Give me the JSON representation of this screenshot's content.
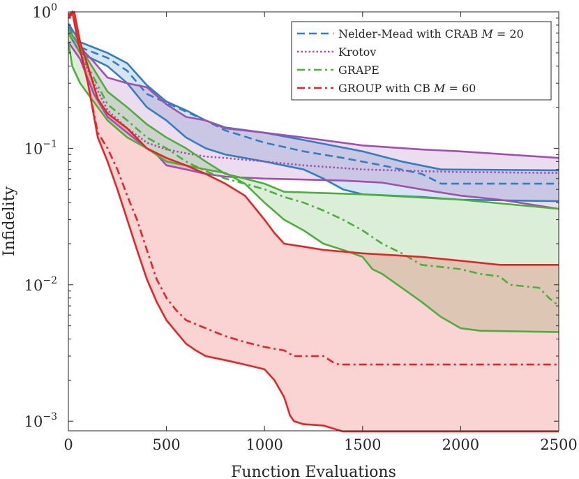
{
  "chart_data": {
    "type": "line",
    "title": "",
    "xlabel": "Function Evaluations",
    "ylabel": "Infidelity",
    "xlim": [
      0,
      2500
    ],
    "ylim": [
      0.00085,
      1.0
    ],
    "yscale": "log",
    "xticks": [
      0,
      500,
      1000,
      1500,
      2000,
      2500
    ],
    "xtick_labels": [
      "0",
      "500",
      "1000",
      "1500",
      "2000",
      "2500"
    ],
    "yticks": [
      1,
      0.1,
      0.01,
      0.001
    ],
    "ytick_labels": [
      {
        "base": "10",
        "exp": "0"
      },
      {
        "base": "10",
        "exp": "−1"
      },
      {
        "base": "10",
        "exp": "−2"
      },
      {
        "base": "10",
        "exp": "−3"
      }
    ],
    "legend": {
      "position": "top-right",
      "entries": [
        {
          "series": "nm",
          "pre": "Nelder-Mead with CRAB ",
          "math": "M",
          "post": " = 20"
        },
        {
          "series": "krotov",
          "pre": "Krotov",
          "math": "",
          "post": ""
        },
        {
          "series": "grape",
          "pre": "GRAPE",
          "math": "",
          "post": ""
        },
        {
          "series": "group",
          "pre": "GROUP with CB ",
          "math": "M",
          "post": " = 60"
        }
      ]
    },
    "series": [
      {
        "id": "nm",
        "name": "Nelder-Mead with CRAB M = 20",
        "color": "#2f7fc1",
        "dash": "dashed",
        "median": [
          [
            0,
            0.78
          ],
          [
            60,
            0.55
          ],
          [
            200,
            0.46
          ],
          [
            300,
            0.37
          ],
          [
            400,
            0.25
          ],
          [
            550,
            0.2
          ],
          [
            700,
            0.16
          ],
          [
            800,
            0.135
          ],
          [
            1000,
            0.11
          ],
          [
            1200,
            0.095
          ],
          [
            1400,
            0.085
          ],
          [
            1600,
            0.075
          ],
          [
            1800,
            0.065
          ],
          [
            1850,
            0.06
          ],
          [
            1900,
            0.055
          ],
          [
            2500,
            0.055
          ]
        ],
        "upper": [
          [
            0,
            0.82
          ],
          [
            60,
            0.6
          ],
          [
            200,
            0.5
          ],
          [
            300,
            0.42
          ],
          [
            400,
            0.29
          ],
          [
            500,
            0.22
          ],
          [
            600,
            0.19
          ],
          [
            700,
            0.16
          ],
          [
            800,
            0.142
          ],
          [
            1000,
            0.13
          ],
          [
            1200,
            0.115
          ],
          [
            1500,
            0.095
          ],
          [
            1700,
            0.08
          ],
          [
            1900,
            0.07
          ],
          [
            2500,
            0.069
          ]
        ],
        "lower": [
          [
            0,
            0.7
          ],
          [
            60,
            0.5
          ],
          [
            200,
            0.4
          ],
          [
            300,
            0.3
          ],
          [
            400,
            0.2
          ],
          [
            500,
            0.16
          ],
          [
            600,
            0.12
          ],
          [
            700,
            0.1
          ],
          [
            800,
            0.09
          ],
          [
            1000,
            0.08
          ],
          [
            1200,
            0.07
          ],
          [
            1300,
            0.06
          ],
          [
            1400,
            0.05
          ],
          [
            1500,
            0.046
          ],
          [
            1800,
            0.044
          ],
          [
            2000,
            0.042
          ],
          [
            2500,
            0.041
          ]
        ]
      },
      {
        "id": "krotov",
        "name": "Krotov",
        "color": "#a050b0",
        "dash": "dotted",
        "median": [
          [
            0,
            0.7
          ],
          [
            60,
            0.5
          ],
          [
            130,
            0.3
          ],
          [
            200,
            0.19
          ],
          [
            300,
            0.14
          ],
          [
            400,
            0.11
          ],
          [
            500,
            0.098
          ],
          [
            600,
            0.092
          ],
          [
            700,
            0.087
          ],
          [
            800,
            0.085
          ],
          [
            1000,
            0.08
          ],
          [
            1200,
            0.075
          ],
          [
            1500,
            0.07
          ],
          [
            1800,
            0.068
          ],
          [
            2000,
            0.067
          ],
          [
            2500,
            0.066
          ]
        ],
        "upper": [
          [
            0,
            0.75
          ],
          [
            60,
            0.55
          ],
          [
            130,
            0.43
          ],
          [
            200,
            0.33
          ],
          [
            300,
            0.3
          ],
          [
            400,
            0.28
          ],
          [
            500,
            0.21
          ],
          [
            600,
            0.17
          ],
          [
            700,
            0.16
          ],
          [
            800,
            0.14
          ],
          [
            1000,
            0.13
          ],
          [
            1200,
            0.12
          ],
          [
            1500,
            0.105
          ],
          [
            1800,
            0.098
          ],
          [
            2000,
            0.095
          ],
          [
            2500,
            0.085
          ]
        ],
        "lower": [
          [
            0,
            0.6
          ],
          [
            60,
            0.45
          ],
          [
            130,
            0.25
          ],
          [
            200,
            0.17
          ],
          [
            300,
            0.13
          ],
          [
            400,
            0.1
          ],
          [
            450,
            0.09
          ],
          [
            500,
            0.075
          ],
          [
            600,
            0.07
          ],
          [
            700,
            0.065
          ],
          [
            800,
            0.062
          ],
          [
            1000,
            0.06
          ],
          [
            1400,
            0.058
          ],
          [
            1600,
            0.056
          ],
          [
            1800,
            0.05
          ],
          [
            2000,
            0.045
          ],
          [
            2200,
            0.042
          ],
          [
            2500,
            0.036
          ]
        ]
      },
      {
        "id": "grape",
        "name": "GRAPE",
        "color": "#4caf3c",
        "dash": "dashdot",
        "median": [
          [
            0,
            0.7
          ],
          [
            60,
            0.5
          ],
          [
            120,
            0.35
          ],
          [
            200,
            0.21
          ],
          [
            300,
            0.16
          ],
          [
            400,
            0.12
          ],
          [
            500,
            0.1
          ],
          [
            600,
            0.08
          ],
          [
            700,
            0.068
          ],
          [
            800,
            0.06
          ],
          [
            900,
            0.055
          ],
          [
            1000,
            0.05
          ],
          [
            1100,
            0.044
          ],
          [
            1200,
            0.04
          ],
          [
            1300,
            0.035
          ],
          [
            1400,
            0.03
          ],
          [
            1500,
            0.025
          ],
          [
            1600,
            0.02
          ],
          [
            1700,
            0.017
          ],
          [
            1800,
            0.014
          ],
          [
            1900,
            0.0135
          ],
          [
            2000,
            0.013
          ],
          [
            2100,
            0.012
          ],
          [
            2200,
            0.0115
          ],
          [
            2250,
            0.01
          ],
          [
            2400,
            0.0095
          ],
          [
            2450,
            0.008
          ],
          [
            2500,
            0.007
          ]
        ],
        "upper": [
          [
            0,
            0.75
          ],
          [
            60,
            0.55
          ],
          [
            120,
            0.4
          ],
          [
            200,
            0.26
          ],
          [
            300,
            0.2
          ],
          [
            400,
            0.15
          ],
          [
            500,
            0.12
          ],
          [
            600,
            0.1
          ],
          [
            700,
            0.08
          ],
          [
            800,
            0.065
          ],
          [
            900,
            0.06
          ],
          [
            1000,
            0.055
          ],
          [
            1100,
            0.048
          ],
          [
            1500,
            0.046
          ],
          [
            2000,
            0.042
          ],
          [
            2500,
            0.036
          ]
        ],
        "lower": [
          [
            0,
            0.6
          ],
          [
            20,
            0.4
          ],
          [
            60,
            0.3
          ],
          [
            100,
            0.25
          ],
          [
            150,
            0.2
          ],
          [
            200,
            0.16
          ],
          [
            300,
            0.12
          ],
          [
            400,
            0.1
          ],
          [
            500,
            0.08
          ],
          [
            700,
            0.07
          ],
          [
            800,
            0.066
          ],
          [
            900,
            0.055
          ],
          [
            1000,
            0.04
          ],
          [
            1100,
            0.03
          ],
          [
            1200,
            0.025
          ],
          [
            1300,
            0.02
          ],
          [
            1400,
            0.018
          ],
          [
            1500,
            0.016
          ],
          [
            1550,
            0.013
          ],
          [
            1600,
            0.012
          ],
          [
            1700,
            0.0095
          ],
          [
            1800,
            0.0075
          ],
          [
            1900,
            0.0058
          ],
          [
            2000,
            0.0048
          ],
          [
            2100,
            0.0046
          ],
          [
            2500,
            0.0045
          ]
        ]
      },
      {
        "id": "group",
        "name": "GROUP with CB M = 60",
        "color": "#e42525",
        "dash": "dashdot",
        "median": [
          [
            0,
            0.95
          ],
          [
            20,
            1.0
          ],
          [
            50,
            0.6
          ],
          [
            100,
            0.3
          ],
          [
            150,
            0.13
          ],
          [
            200,
            0.1
          ],
          [
            250,
            0.07
          ],
          [
            300,
            0.045
          ],
          [
            350,
            0.03
          ],
          [
            400,
            0.018
          ],
          [
            450,
            0.011
          ],
          [
            500,
            0.008
          ],
          [
            550,
            0.0065
          ],
          [
            600,
            0.0055
          ],
          [
            700,
            0.0048
          ],
          [
            800,
            0.0042
          ],
          [
            900,
            0.0038
          ],
          [
            1000,
            0.0035
          ],
          [
            1100,
            0.0033
          ],
          [
            1150,
            0.003
          ],
          [
            1300,
            0.003
          ],
          [
            1350,
            0.0027
          ],
          [
            1380,
            0.0026
          ],
          [
            2500,
            0.0026
          ]
        ],
        "upper": [
          [
            0,
            0.9
          ],
          [
            30,
            1.0
          ],
          [
            60,
            0.6
          ],
          [
            100,
            0.4
          ],
          [
            150,
            0.23
          ],
          [
            200,
            0.18
          ],
          [
            300,
            0.14
          ],
          [
            400,
            0.1
          ],
          [
            500,
            0.085
          ],
          [
            600,
            0.075
          ],
          [
            700,
            0.065
          ],
          [
            800,
            0.055
          ],
          [
            900,
            0.045
          ],
          [
            1000,
            0.03
          ],
          [
            1050,
            0.024
          ],
          [
            1100,
            0.02
          ],
          [
            1200,
            0.019
          ],
          [
            1300,
            0.018
          ],
          [
            1500,
            0.017
          ],
          [
            1800,
            0.016
          ],
          [
            2000,
            0.015
          ],
          [
            2200,
            0.014
          ],
          [
            2500,
            0.014
          ]
        ],
        "lower": [
          [
            0,
            0.9
          ],
          [
            20,
            1.0
          ],
          [
            50,
            0.6
          ],
          [
            100,
            0.3
          ],
          [
            150,
            0.12
          ],
          [
            200,
            0.08
          ],
          [
            250,
            0.05
          ],
          [
            300,
            0.03
          ],
          [
            350,
            0.018
          ],
          [
            400,
            0.011
          ],
          [
            450,
            0.0075
          ],
          [
            500,
            0.0055
          ],
          [
            550,
            0.0045
          ],
          [
            600,
            0.0037
          ],
          [
            650,
            0.0033
          ],
          [
            700,
            0.003
          ],
          [
            800,
            0.0028
          ],
          [
            900,
            0.0026
          ],
          [
            1000,
            0.0024
          ],
          [
            1050,
            0.002
          ],
          [
            1100,
            0.0015
          ],
          [
            1130,
            0.0011
          ],
          [
            1150,
            0.001
          ],
          [
            1200,
            0.00095
          ],
          [
            1300,
            0.00093
          ],
          [
            1400,
            0.00084
          ],
          [
            2500,
            0.00084
          ]
        ]
      }
    ]
  }
}
